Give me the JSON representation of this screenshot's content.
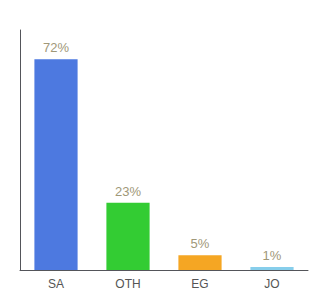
{
  "chart_data": {
    "type": "bar",
    "categories": [
      "SA",
      "OTH",
      "EG",
      "JO"
    ],
    "values": [
      72,
      23,
      5,
      1
    ],
    "value_labels": [
      "72%",
      "23%",
      "5%",
      "1%"
    ],
    "colors": [
      "#4d79e0",
      "#33cc33",
      "#f5a623",
      "#87ceeb"
    ],
    "ylim": [
      0,
      82
    ],
    "grid": false,
    "data_labels": true,
    "tick_labels": "x"
  }
}
